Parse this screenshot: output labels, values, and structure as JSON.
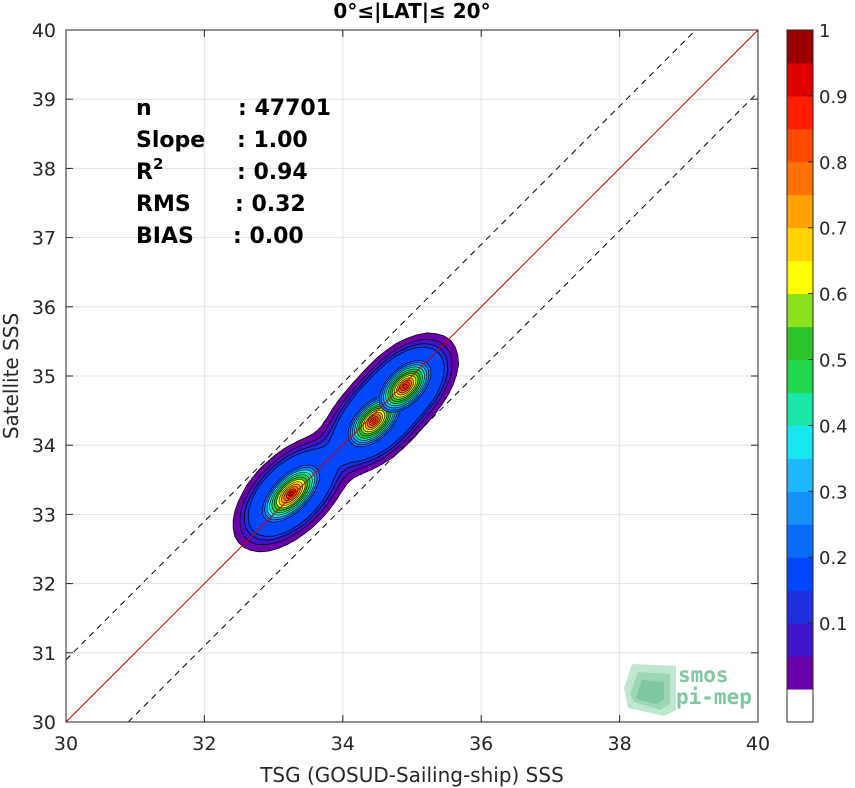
{
  "chart_data": {
    "type": "heatmap",
    "title": "0°≤|LAT|≤ 20°",
    "xlabel": "TSG (GOSUD-Sailing-ship) SSS",
    "ylabel": "Satellite SSS",
    "xlim": [
      30,
      40
    ],
    "ylim": [
      30,
      40
    ],
    "xticks": [
      "30",
      "32",
      "34",
      "36",
      "38",
      "40"
    ],
    "yticks": [
      "30",
      "31",
      "32",
      "33",
      "34",
      "35",
      "36",
      "37",
      "38",
      "39",
      "40"
    ],
    "grid": true,
    "reference_lines": {
      "one_to_one": {
        "slope": 1,
        "offset": 0,
        "color": "#cc0000"
      },
      "upper_bound": {
        "slope": 1,
        "offset": 0.9,
        "style": "dashed"
      },
      "lower_bound": {
        "slope": 1,
        "offset": -0.9,
        "style": "dashed"
      }
    },
    "density_peaks": [
      {
        "x": 33.25,
        "y": 33.3,
        "value": 1.0
      },
      {
        "x": 34.45,
        "y": 34.35,
        "value": 0.95
      },
      {
        "x": 34.9,
        "y": 34.85,
        "value": 0.95
      }
    ],
    "colorbar": {
      "ticks": [
        "0.1",
        "0.2",
        "0.3",
        "0.4",
        "0.5",
        "0.6",
        "0.7",
        "0.8",
        "0.9",
        "1"
      ],
      "range": [
        0,
        1
      ],
      "colors": [
        "#ffffff",
        "#6a00a8",
        "#3d14c8",
        "#1f2fe0",
        "#0047ff",
        "#0a6cff",
        "#1490ff",
        "#1fb8ff",
        "#17e8ee",
        "#1ae6a9",
        "#22d84a",
        "#2ec42c",
        "#8be21c",
        "#fffe00",
        "#ffd200",
        "#ffa200",
        "#ff7200",
        "#ff4a00",
        "#ff1e00",
        "#e00000",
        "#9a0000"
      ]
    },
    "stats": [
      {
        "label": "n",
        "value": ": 47701"
      },
      {
        "label": "Slope",
        "value": ": 1.00"
      },
      {
        "label": "R",
        "sup": "2",
        "value": ": 0.94"
      },
      {
        "label": "RMS",
        "value": ": 0.32"
      },
      {
        "label": "BIAS",
        "value": ": 0.00"
      }
    ]
  },
  "logo": {
    "line1": "smos",
    "line2": "pi-mep"
  }
}
